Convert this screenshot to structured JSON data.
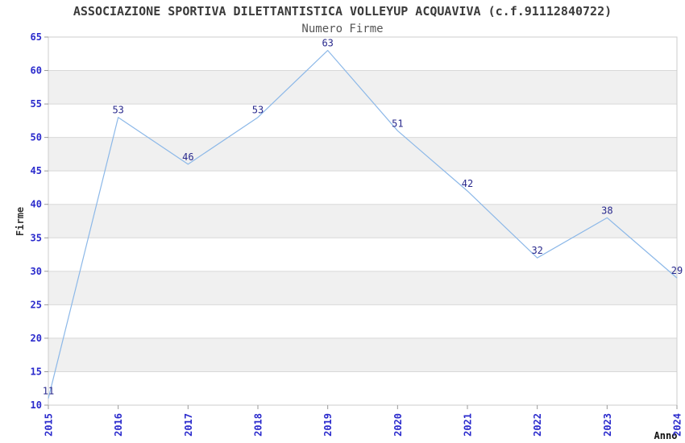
{
  "header": {
    "title": "ASSOCIAZIONE SPORTIVA DILETTANTISTICA VOLLEYUP ACQUAVIVA (c.f.91112840722)",
    "subtitle": "Numero Firme"
  },
  "chart_data": {
    "type": "line",
    "title": "Numero Firme",
    "xlabel": "Anno",
    "ylabel": "Firme",
    "categories": [
      "2015",
      "2016",
      "2017",
      "2018",
      "2019",
      "2020",
      "2021",
      "2022",
      "2023",
      "2024"
    ],
    "series": [
      {
        "name": "Numero Firme",
        "values": [
          11,
          53,
          46,
          53,
          63,
          51,
          42,
          32,
          38,
          29
        ]
      }
    ],
    "ylim": [
      10,
      65
    ],
    "ytick_step": 5,
    "yticks": [
      10,
      15,
      20,
      25,
      30,
      35,
      40,
      45,
      50,
      55,
      60,
      65
    ],
    "grid": "horizontal",
    "legend": "none",
    "show_point_labels": true,
    "style": {
      "line_color": "#8CB8E8",
      "point_label_color": "#28288C",
      "tick_label_color": "#2A2ACC",
      "band_color": "#F0F0F0",
      "gridline_color": "#D8D8D8",
      "frame_color": "#CCCCCC",
      "tick_mark_color": "#9A9A9A",
      "title_color": "#3A3A3A",
      "subtitle_color": "#555555",
      "axis_label_color": "#333333",
      "background": "#FFFFFF"
    }
  }
}
